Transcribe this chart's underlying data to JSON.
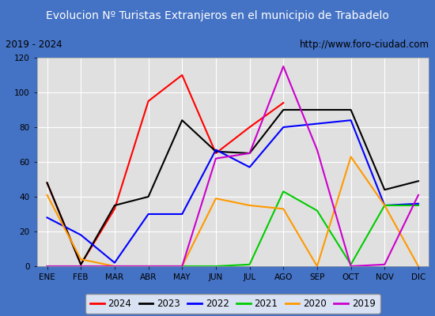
{
  "title": "Evolucion Nº Turistas Extranjeros en el municipio de Trabadelo",
  "subtitle_left": "2019 - 2024",
  "subtitle_right": "http://www.foro-ciudad.com",
  "months": [
    "ENE",
    "FEB",
    "MAR",
    "ABR",
    "MAY",
    "JUN",
    "JUL",
    "AGO",
    "SEP",
    "OCT",
    "NOV",
    "DIC"
  ],
  "series": {
    "2024": [
      48,
      1,
      33,
      95,
      110,
      65,
      80,
      94,
      null,
      null,
      null,
      null
    ],
    "2023": [
      48,
      1,
      35,
      40,
      84,
      66,
      65,
      90,
      90,
      90,
      44,
      49
    ],
    "2022": [
      28,
      18,
      2,
      30,
      30,
      67,
      57,
      80,
      82,
      84,
      35,
      36
    ],
    "2021": [
      0,
      0,
      0,
      0,
      0,
      0,
      1,
      43,
      32,
      1,
      35,
      35
    ],
    "2020": [
      41,
      4,
      0,
      0,
      0,
      39,
      35,
      33,
      0,
      63,
      35,
      0
    ],
    "2019": [
      0,
      0,
      0,
      0,
      0,
      62,
      65,
      115,
      67,
      0,
      1,
      41
    ]
  },
  "colors": {
    "2024": "#ff0000",
    "2023": "#000000",
    "2022": "#0000ff",
    "2021": "#00cc00",
    "2020": "#ff9900",
    "2019": "#cc00cc"
  },
  "ylim": [
    0,
    120
  ],
  "yticks": [
    0,
    20,
    40,
    60,
    80,
    100,
    120
  ],
  "title_bg_color": "#4472c4",
  "title_font_color": "#ffffff",
  "plot_bg_color": "#e0e0e0",
  "outer_bg_color": "#4472c4",
  "subtitle_bg_color": "#f2f2f2",
  "grid_color": "#ffffff",
  "legend_order": [
    "2024",
    "2023",
    "2022",
    "2021",
    "2020",
    "2019"
  ]
}
